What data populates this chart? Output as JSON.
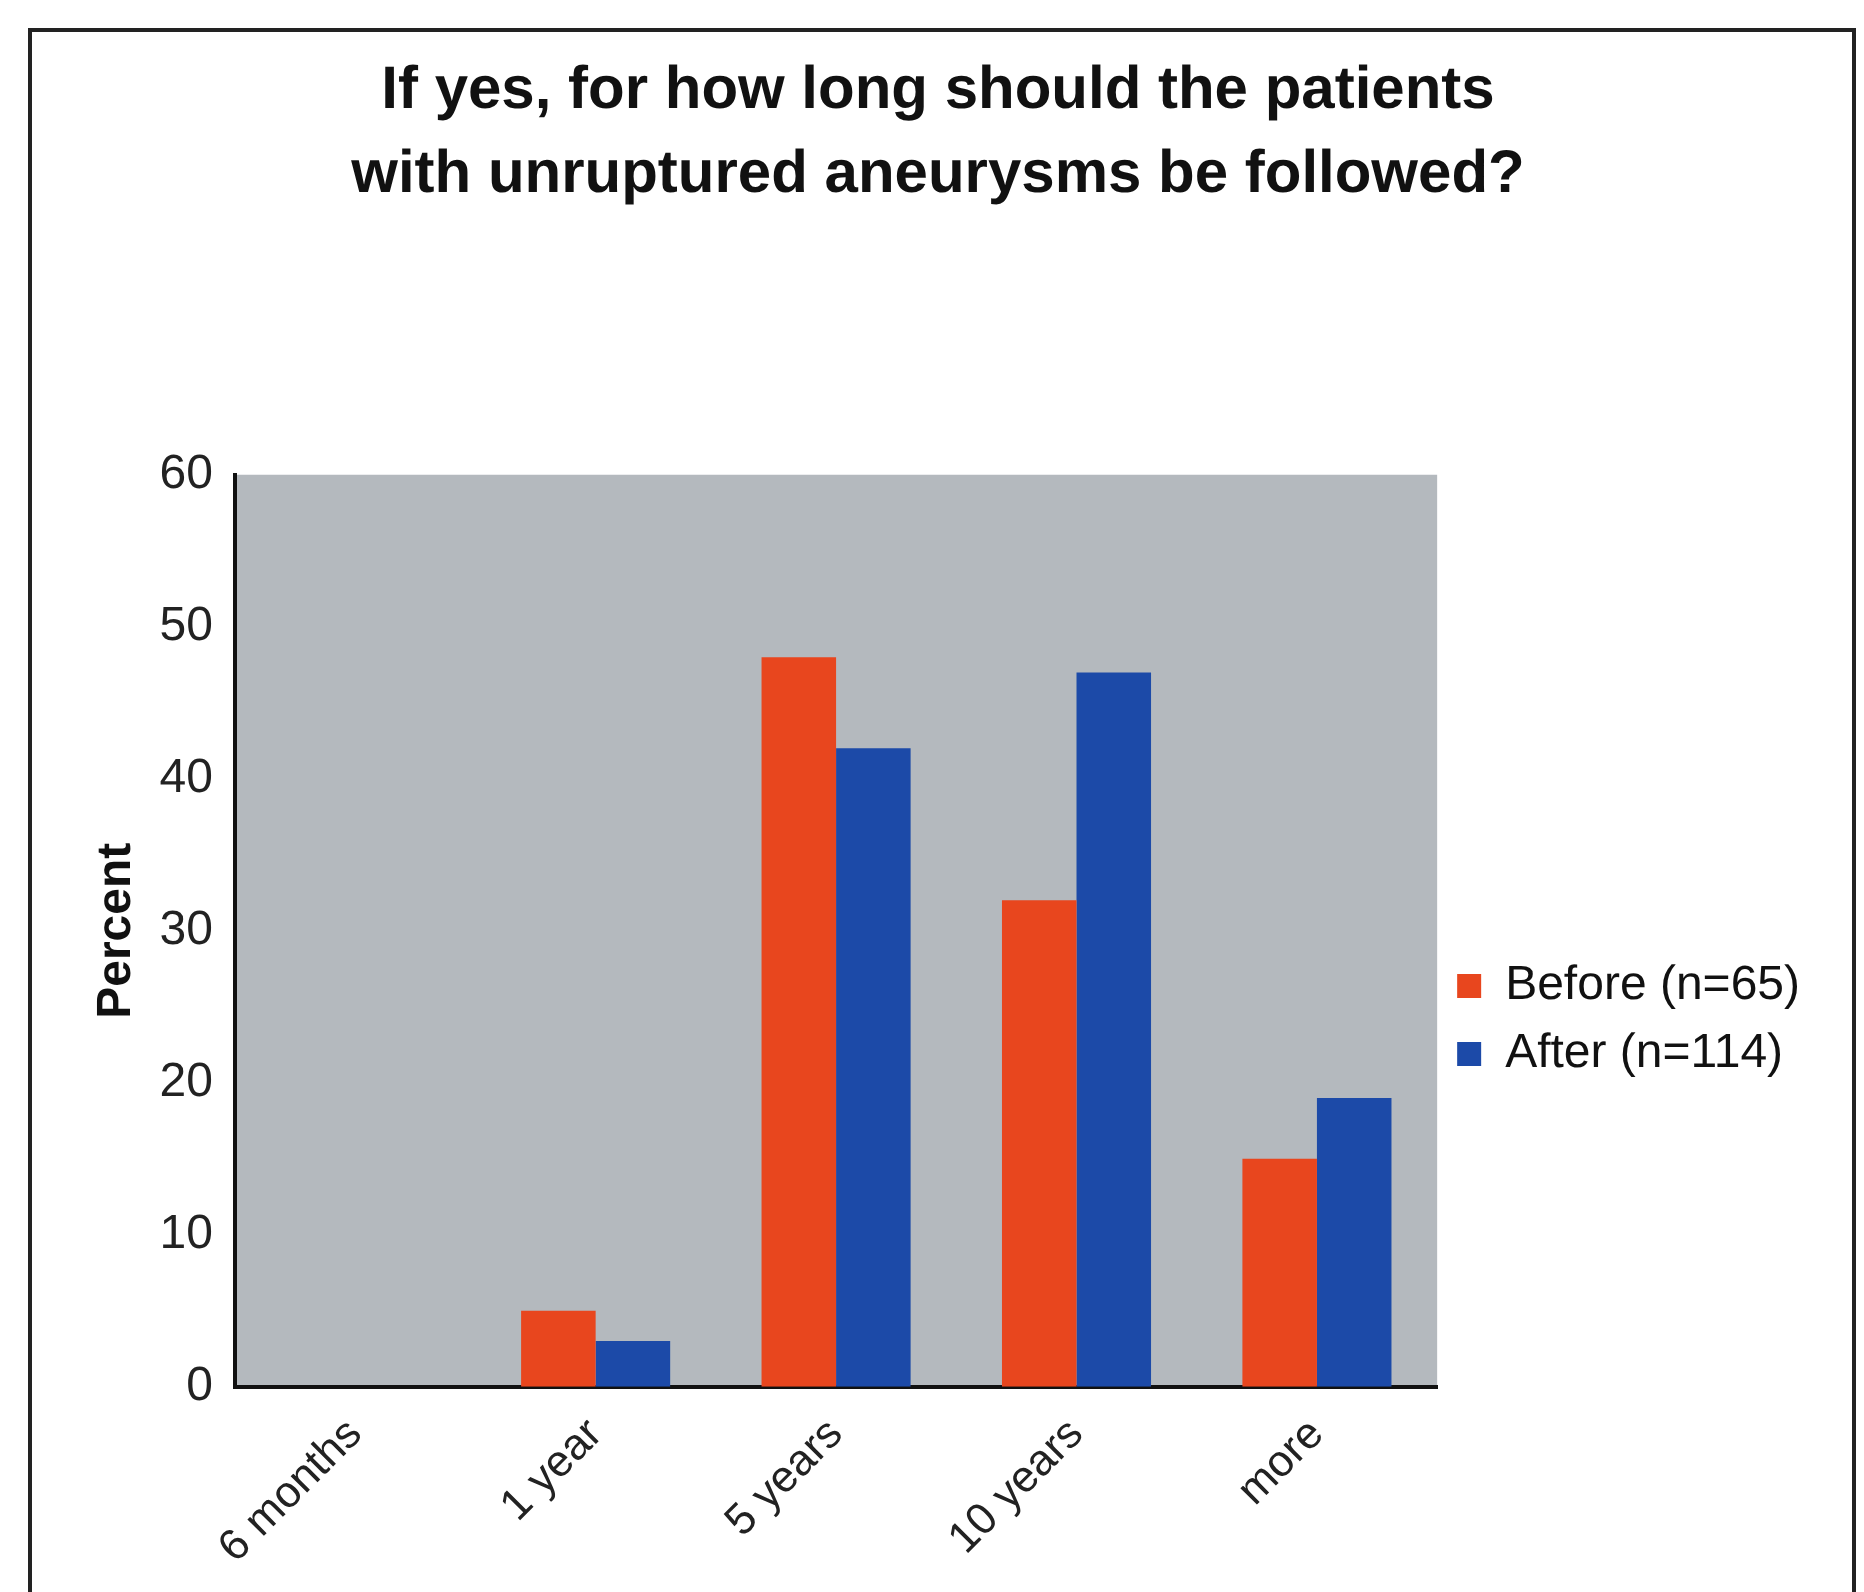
{
  "chart_data": {
    "type": "bar",
    "title": "If yes, for how long should the patients with unruptured aneurysms be followed?",
    "ylabel": "Percent",
    "categories": [
      "6 months",
      "1 year",
      "5 years",
      "10 years",
      "more"
    ],
    "series": [
      {
        "name": "Before (n=65)",
        "color": "#e8461e",
        "values": [
          0,
          5,
          48,
          32,
          15
        ]
      },
      {
        "name": "After (n=114)",
        "color": "#1c4aa8",
        "values": [
          0,
          3,
          42,
          47,
          19
        ]
      }
    ],
    "ylim": [
      0,
      60
    ],
    "yticks": [
      0,
      10,
      20,
      30,
      40,
      50,
      60
    ],
    "grid": false,
    "legend": "right"
  }
}
